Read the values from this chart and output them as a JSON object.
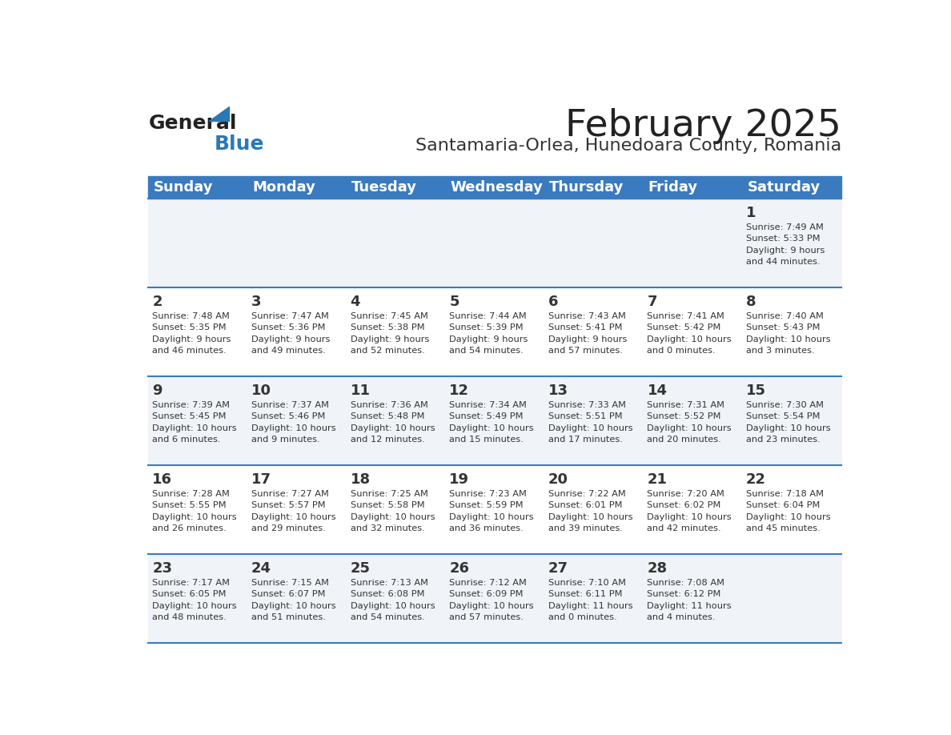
{
  "title": "February 2025",
  "subtitle": "Santamaria-Orlea, Hunedoara County, Romania",
  "days_of_week": [
    "Sunday",
    "Monday",
    "Tuesday",
    "Wednesday",
    "Thursday",
    "Friday",
    "Saturday"
  ],
  "header_bg": "#3a7abf",
  "header_text": "#ffffff",
  "row_bg_even": "#f0f4f8",
  "row_bg_odd": "#ffffff",
  "separator_color": "#3a7abf",
  "cell_text_color": "#333333",
  "day_num_color": "#333333",
  "title_color": "#222222",
  "subtitle_color": "#333333",
  "logo_general_color": "#222222",
  "logo_blue_color": "#2979b8",
  "calendar_data": [
    [
      {
        "day": null,
        "info": null
      },
      {
        "day": null,
        "info": null
      },
      {
        "day": null,
        "info": null
      },
      {
        "day": null,
        "info": null
      },
      {
        "day": null,
        "info": null
      },
      {
        "day": null,
        "info": null
      },
      {
        "day": 1,
        "info": "Sunrise: 7:49 AM\nSunset: 5:33 PM\nDaylight: 9 hours\nand 44 minutes."
      }
    ],
    [
      {
        "day": 2,
        "info": "Sunrise: 7:48 AM\nSunset: 5:35 PM\nDaylight: 9 hours\nand 46 minutes."
      },
      {
        "day": 3,
        "info": "Sunrise: 7:47 AM\nSunset: 5:36 PM\nDaylight: 9 hours\nand 49 minutes."
      },
      {
        "day": 4,
        "info": "Sunrise: 7:45 AM\nSunset: 5:38 PM\nDaylight: 9 hours\nand 52 minutes."
      },
      {
        "day": 5,
        "info": "Sunrise: 7:44 AM\nSunset: 5:39 PM\nDaylight: 9 hours\nand 54 minutes."
      },
      {
        "day": 6,
        "info": "Sunrise: 7:43 AM\nSunset: 5:41 PM\nDaylight: 9 hours\nand 57 minutes."
      },
      {
        "day": 7,
        "info": "Sunrise: 7:41 AM\nSunset: 5:42 PM\nDaylight: 10 hours\nand 0 minutes."
      },
      {
        "day": 8,
        "info": "Sunrise: 7:40 AM\nSunset: 5:43 PM\nDaylight: 10 hours\nand 3 minutes."
      }
    ],
    [
      {
        "day": 9,
        "info": "Sunrise: 7:39 AM\nSunset: 5:45 PM\nDaylight: 10 hours\nand 6 minutes."
      },
      {
        "day": 10,
        "info": "Sunrise: 7:37 AM\nSunset: 5:46 PM\nDaylight: 10 hours\nand 9 minutes."
      },
      {
        "day": 11,
        "info": "Sunrise: 7:36 AM\nSunset: 5:48 PM\nDaylight: 10 hours\nand 12 minutes."
      },
      {
        "day": 12,
        "info": "Sunrise: 7:34 AM\nSunset: 5:49 PM\nDaylight: 10 hours\nand 15 minutes."
      },
      {
        "day": 13,
        "info": "Sunrise: 7:33 AM\nSunset: 5:51 PM\nDaylight: 10 hours\nand 17 minutes."
      },
      {
        "day": 14,
        "info": "Sunrise: 7:31 AM\nSunset: 5:52 PM\nDaylight: 10 hours\nand 20 minutes."
      },
      {
        "day": 15,
        "info": "Sunrise: 7:30 AM\nSunset: 5:54 PM\nDaylight: 10 hours\nand 23 minutes."
      }
    ],
    [
      {
        "day": 16,
        "info": "Sunrise: 7:28 AM\nSunset: 5:55 PM\nDaylight: 10 hours\nand 26 minutes."
      },
      {
        "day": 17,
        "info": "Sunrise: 7:27 AM\nSunset: 5:57 PM\nDaylight: 10 hours\nand 29 minutes."
      },
      {
        "day": 18,
        "info": "Sunrise: 7:25 AM\nSunset: 5:58 PM\nDaylight: 10 hours\nand 32 minutes."
      },
      {
        "day": 19,
        "info": "Sunrise: 7:23 AM\nSunset: 5:59 PM\nDaylight: 10 hours\nand 36 minutes."
      },
      {
        "day": 20,
        "info": "Sunrise: 7:22 AM\nSunset: 6:01 PM\nDaylight: 10 hours\nand 39 minutes."
      },
      {
        "day": 21,
        "info": "Sunrise: 7:20 AM\nSunset: 6:02 PM\nDaylight: 10 hours\nand 42 minutes."
      },
      {
        "day": 22,
        "info": "Sunrise: 7:18 AM\nSunset: 6:04 PM\nDaylight: 10 hours\nand 45 minutes."
      }
    ],
    [
      {
        "day": 23,
        "info": "Sunrise: 7:17 AM\nSunset: 6:05 PM\nDaylight: 10 hours\nand 48 minutes."
      },
      {
        "day": 24,
        "info": "Sunrise: 7:15 AM\nSunset: 6:07 PM\nDaylight: 10 hours\nand 51 minutes."
      },
      {
        "day": 25,
        "info": "Sunrise: 7:13 AM\nSunset: 6:08 PM\nDaylight: 10 hours\nand 54 minutes."
      },
      {
        "day": 26,
        "info": "Sunrise: 7:12 AM\nSunset: 6:09 PM\nDaylight: 10 hours\nand 57 minutes."
      },
      {
        "day": 27,
        "info": "Sunrise: 7:10 AM\nSunset: 6:11 PM\nDaylight: 11 hours\nand 0 minutes."
      },
      {
        "day": 28,
        "info": "Sunrise: 7:08 AM\nSunset: 6:12 PM\nDaylight: 11 hours\nand 4 minutes."
      },
      {
        "day": null,
        "info": null
      }
    ]
  ]
}
